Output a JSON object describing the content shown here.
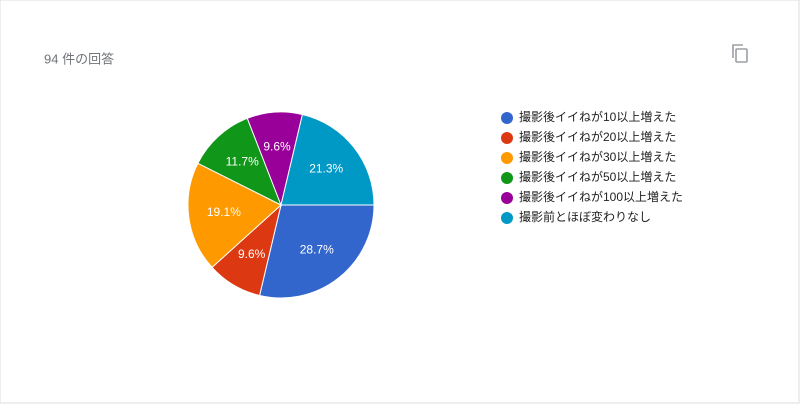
{
  "chart_data": {
    "type": "pie",
    "title": "94 件の回答",
    "categories": [
      "撮影後イイねが10以上増えた",
      "撮影後イイねが20以上増えた",
      "撮影後イイねが30以上増えた",
      "撮影後イイねが50以上増えた",
      "撮影後イイねが100以上増えた",
      "撮影前とほぼ変わりなし"
    ],
    "values": [
      28.7,
      9.6,
      19.1,
      11.7,
      9.6,
      21.3
    ],
    "value_labels": [
      "28.7%",
      "9.6%",
      "19.1%",
      "11.7%",
      "9.6%",
      "21.3%"
    ],
    "colors": [
      "#3366cc",
      "#dc3912",
      "#ff9900",
      "#109618",
      "#990099",
      "#0099c6"
    ],
    "legend": "right"
  }
}
